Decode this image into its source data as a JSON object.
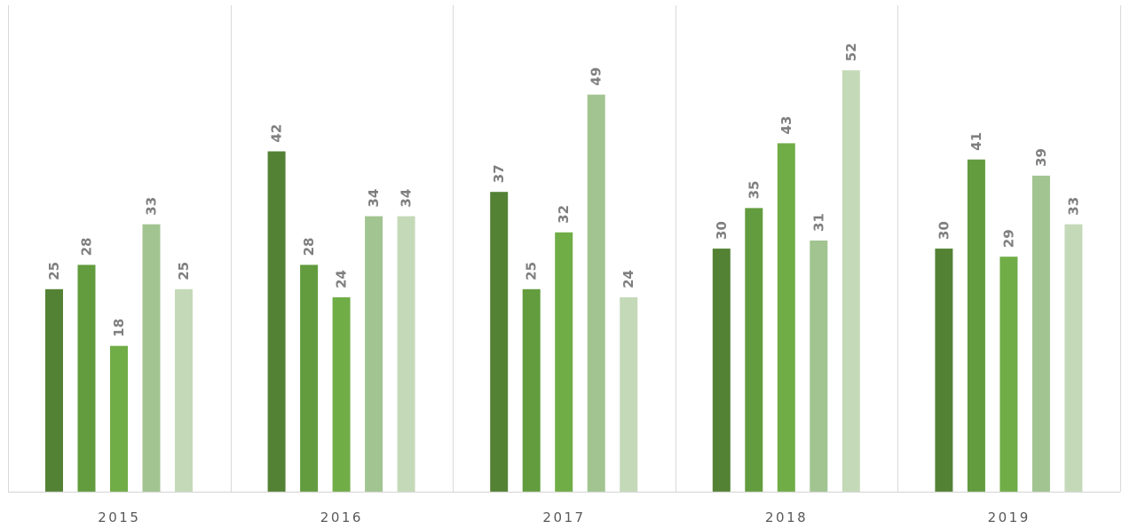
{
  "chart_data": {
    "type": "bar",
    "title": "",
    "xlabel": "",
    "ylabel": "",
    "categories": [
      "2015",
      "2016",
      "2017",
      "2018",
      "2019"
    ],
    "series": [
      {
        "color": "#548235",
        "values": [
          25,
          42,
          37,
          30,
          30
        ]
      },
      {
        "color": "#629c3e",
        "values": [
          28,
          28,
          25,
          35,
          41
        ]
      },
      {
        "color": "#70ad47",
        "values": [
          18,
          24,
          32,
          43,
          29
        ]
      },
      {
        "color": "#a1c490",
        "values": [
          33,
          34,
          49,
          31,
          39
        ]
      },
      {
        "color": "#c4d9b8",
        "values": [
          25,
          34,
          24,
          52,
          33
        ]
      }
    ],
    "ylim": [
      0,
      55
    ],
    "grid": false,
    "legend": "none",
    "data_labels": true,
    "category_dividers": true
  }
}
